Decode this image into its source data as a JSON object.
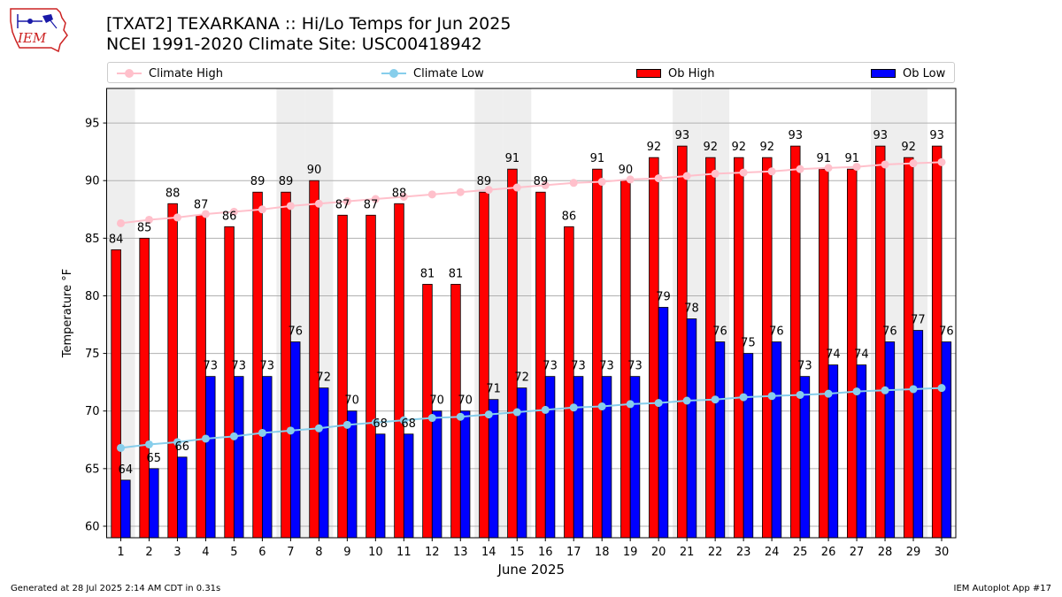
{
  "header": {
    "title_line1": "[TXAT2] TEXARKANA :: Hi/Lo Temps for Jun 2025",
    "title_line2": "NCEI 1991-2020 Climate Site: USC00418942",
    "logo_text": "IEM"
  },
  "legend": {
    "climate_high": "Climate High",
    "climate_low": "Climate Low",
    "ob_high": "Ob High",
    "ob_low": "Ob Low"
  },
  "footer": {
    "left": "Generated at 28 Jul 2025 2:14 AM CDT in 0.31s",
    "right": "IEM Autoplot App #17"
  },
  "colors": {
    "ob_high": "#ff0000",
    "ob_low": "#0000ff",
    "climate_high": "#ffc0cb",
    "climate_low": "#87ceeb",
    "weekend_shade": "#eeeeee",
    "grid": "#b0b0b0"
  },
  "chart_data": {
    "type": "bar",
    "xlabel": "June 2025",
    "ylabel": "Temperature °F",
    "ylim": [
      59,
      98
    ],
    "yticks": [
      60,
      65,
      70,
      75,
      80,
      85,
      90,
      95
    ],
    "grid": "horizontal",
    "legend_position": "top",
    "shaded_days": [
      1,
      7,
      8,
      14,
      15,
      21,
      22,
      28,
      29
    ],
    "categories": [
      1,
      2,
      3,
      4,
      5,
      6,
      7,
      8,
      9,
      10,
      11,
      12,
      13,
      14,
      15,
      16,
      17,
      18,
      19,
      20,
      21,
      22,
      23,
      24,
      25,
      26,
      27,
      28,
      29,
      30
    ],
    "series": [
      {
        "name": "Ob High",
        "kind": "bar",
        "values": [
          84,
          85,
          88,
          87,
          86,
          89,
          89,
          90,
          87,
          87,
          88,
          81,
          81,
          89,
          91,
          89,
          86,
          91,
          90,
          92,
          93,
          92,
          92,
          92,
          93,
          91,
          91,
          93,
          92,
          93
        ]
      },
      {
        "name": "Ob Low",
        "kind": "bar",
        "values": [
          64,
          65,
          66,
          73,
          73,
          73,
          76,
          72,
          70,
          68,
          68,
          70,
          70,
          71,
          72,
          73,
          73,
          73,
          73,
          79,
          78,
          76,
          75,
          76,
          73,
          74,
          74,
          76,
          77,
          76
        ]
      },
      {
        "name": "Climate High",
        "kind": "line",
        "values": [
          86.3,
          86.6,
          86.8,
          87.1,
          87.3,
          87.5,
          87.8,
          88.0,
          88.2,
          88.4,
          88.6,
          88.8,
          89.0,
          89.2,
          89.4,
          89.6,
          89.8,
          89.9,
          90.1,
          90.2,
          90.4,
          90.6,
          90.7,
          90.8,
          91.0,
          91.1,
          91.2,
          91.4,
          91.5,
          91.6
        ]
      },
      {
        "name": "Climate Low",
        "kind": "line",
        "values": [
          66.8,
          67.1,
          67.3,
          67.6,
          67.8,
          68.1,
          68.3,
          68.5,
          68.8,
          69.0,
          69.2,
          69.4,
          69.5,
          69.7,
          69.9,
          70.1,
          70.3,
          70.4,
          70.6,
          70.7,
          70.9,
          71.0,
          71.2,
          71.3,
          71.4,
          71.5,
          71.7,
          71.8,
          71.9,
          72.0
        ]
      }
    ]
  }
}
